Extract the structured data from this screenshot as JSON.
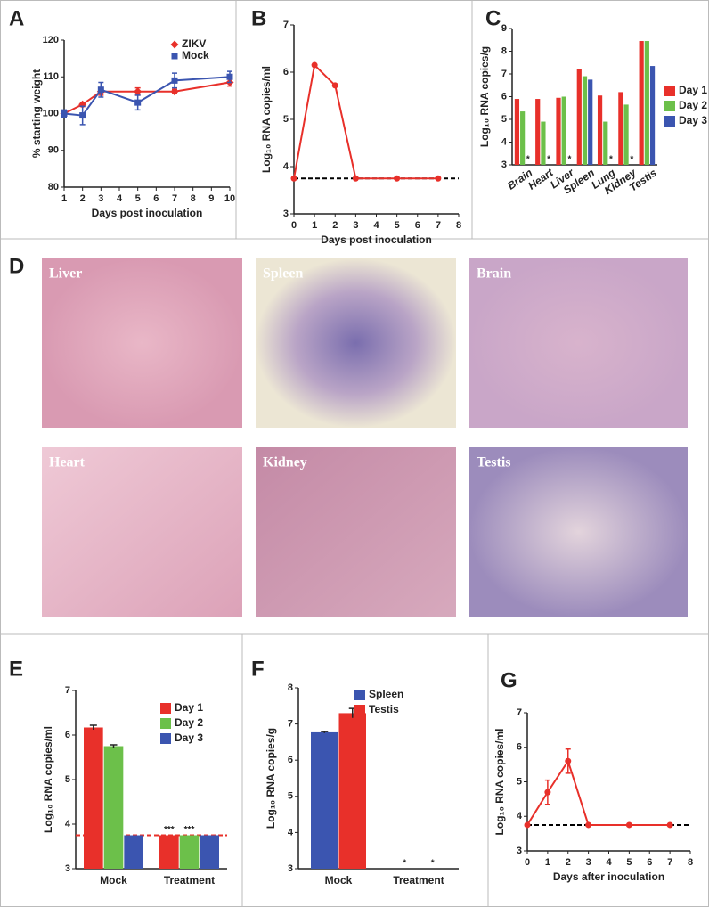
{
  "chart_data": [
    {
      "type": "line",
      "label": "A",
      "y_label": "% starting weight",
      "x_label": "Days post inoculation",
      "x": [
        1,
        2,
        3,
        5,
        7,
        10
      ],
      "xlim": [
        1,
        10
      ],
      "xticks": [
        1,
        2,
        3,
        4,
        5,
        6,
        7,
        8,
        9,
        10
      ],
      "ylim": [
        80,
        120
      ],
      "yticks": [
        80,
        90,
        100,
        110,
        120
      ],
      "legend": "upper right",
      "series": [
        {
          "name": "ZIKV",
          "color": "#e8302a",
          "marker": "diamond",
          "values": [
            100,
            102.5,
            106,
            106,
            106,
            108.5
          ],
          "errors": [
            0.5,
            0.6,
            1,
            1,
            0.6,
            1
          ]
        },
        {
          "name": "Mock",
          "color": "#3b55b0",
          "marker": "square",
          "values": [
            100,
            99.5,
            106.5,
            103,
            109,
            110
          ],
          "errors": [
            1,
            2.5,
            2,
            2,
            2,
            1.5
          ]
        }
      ]
    },
    {
      "type": "line",
      "label": "B",
      "y_label": "Log₁₀ RNA copies/ml",
      "x_label": "Days post inoculation",
      "x": [
        0,
        1,
        2,
        3,
        5,
        7
      ],
      "xlim": [
        0,
        8
      ],
      "xticks": [
        0,
        1,
        2,
        3,
        4,
        5,
        6,
        7,
        8
      ],
      "ylim": [
        3,
        7
      ],
      "yticks": [
        3,
        4,
        5,
        6,
        7
      ],
      "hline": 3.75,
      "hline_color": "#000",
      "series": [
        {
          "name": "ZIKV",
          "color": "#e8302a",
          "marker": "circle",
          "values": [
            3.75,
            6.15,
            5.72,
            3.75,
            3.75,
            3.75
          ]
        }
      ]
    },
    {
      "type": "bar",
      "label": "C",
      "y_label": "Log₁₀ RNA copies/g",
      "rotate_labels": true,
      "categories": [
        "Brain",
        "Heart",
        "Liver",
        "Spleen",
        "Lung",
        "Kidney",
        "Testis"
      ],
      "ylim": [
        3,
        9
      ],
      "yticks": [
        3,
        4,
        5,
        6,
        7,
        8,
        9
      ],
      "legend": "right",
      "series": [
        {
          "name": "Day 1",
          "color": "#e8302a",
          "values": [
            5.9,
            5.9,
            5.95,
            7.2,
            6.05,
            6.2,
            8.45
          ]
        },
        {
          "name": "Day 2",
          "color": "#6cc04a",
          "values": [
            5.35,
            4.9,
            6.0,
            6.9,
            4.9,
            5.65,
            8.45
          ]
        },
        {
          "name": "Day 3",
          "color": "#3b55b0",
          "values": [
            null,
            null,
            null,
            6.75,
            null,
            null,
            7.35
          ],
          "annotations": [
            "*",
            "*",
            "*",
            null,
            "*",
            "*",
            null
          ]
        }
      ]
    },
    {
      "type": "bar",
      "label": "E",
      "y_label": "Log₁₀ RNA copies/ml",
      "categories": [
        "Mock",
        "Treatment"
      ],
      "ylim": [
        3,
        7
      ],
      "yticks": [
        3,
        4,
        5,
        6,
        7
      ],
      "hline": 3.75,
      "hline_color": "#e8302a",
      "legend": "upper right",
      "series": [
        {
          "name": "Day 1",
          "color": "#e8302a",
          "values": [
            6.17,
            3.75
          ],
          "errors": [
            0.05,
            null
          ],
          "annotations": [
            null,
            "***"
          ]
        },
        {
          "name": "Day 2",
          "color": "#6cc04a",
          "values": [
            5.75,
            3.75
          ],
          "errors": [
            0.03,
            null
          ],
          "annotations": [
            null,
            "***"
          ]
        },
        {
          "name": "Day 3",
          "color": "#3b55b0",
          "values": [
            3.75,
            3.75
          ]
        }
      ]
    },
    {
      "type": "bar",
      "label": "F",
      "y_label": "Log₁₀ RNA copies/g",
      "categories": [
        "Mock",
        "Treatment"
      ],
      "ylim": [
        3,
        8
      ],
      "yticks": [
        3,
        4,
        5,
        6,
        7,
        8
      ],
      "legend": "upper right",
      "series": [
        {
          "name": "Spleen",
          "color": "#3b55b0",
          "values": [
            6.77,
            null
          ],
          "errors": [
            0.02,
            null
          ],
          "annotations": [
            null,
            "*"
          ]
        },
        {
          "name": "Testis",
          "color": "#e8302a",
          "values": [
            7.3,
            null
          ],
          "errors": [
            0.13,
            null
          ],
          "annotations": [
            null,
            "*"
          ]
        }
      ]
    },
    {
      "type": "line",
      "label": "G",
      "y_label": "Log₁₀ RNA copies/ml",
      "x_label": "Days after inoculation",
      "x": [
        0,
        1,
        2,
        3,
        5,
        7
      ],
      "xlim": [
        0,
        8
      ],
      "xticks": [
        0,
        1,
        2,
        3,
        4,
        5,
        6,
        7,
        8
      ],
      "ylim": [
        3,
        7
      ],
      "yticks": [
        3,
        4,
        5,
        6,
        7
      ],
      "hline": 3.75,
      "hline_color": "#000",
      "series": [
        {
          "name": "ZIKV",
          "color": "#e8302a",
          "marker": "circle",
          "values": [
            3.75,
            4.7,
            5.6,
            3.75,
            3.75,
            3.75
          ],
          "errors": [
            0,
            0.35,
            0.35,
            0,
            0,
            0
          ]
        }
      ]
    }
  ],
  "histology": {
    "label": "D",
    "images": [
      {
        "label": "Liver"
      },
      {
        "label": "Spleen"
      },
      {
        "label": "Brain"
      },
      {
        "label": "Heart"
      },
      {
        "label": "Kidney"
      },
      {
        "label": "Testis"
      }
    ]
  }
}
